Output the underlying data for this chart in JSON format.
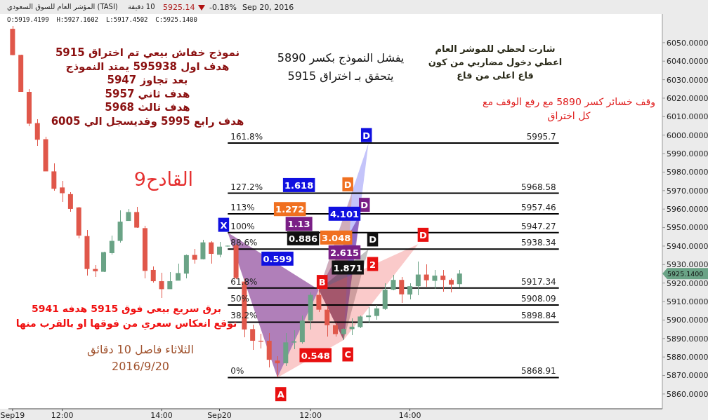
{
  "chart_data": {
    "type": "candlestick",
    "title": "المؤشر العام للسوق السعودي (TASI)",
    "subtitle": "10 دقيقة",
    "categories": [
      "Sep19",
      null,
      null,
      null,
      null,
      null,
      "12:00",
      null,
      null,
      null,
      null,
      null,
      null,
      null,
      null,
      null,
      null,
      null,
      "14:00",
      null,
      null,
      null,
      null,
      null,
      null,
      "Sep20",
      null,
      null,
      null,
      null,
      null,
      null,
      null,
      null,
      null,
      null,
      "12:00",
      null,
      null,
      null,
      null,
      null,
      null,
      null,
      null,
      null,
      null,
      null,
      "14:00",
      null,
      null,
      null,
      null,
      null,
      null,
      null,
      null,
      null,
      null,
      null,
      null,
      null,
      null,
      null,
      null,
      null,
      null,
      null,
      null,
      null,
      null,
      null,
      null,
      null,
      null,
      null,
      null,
      null,
      null
    ],
    "ohlc": [
      [
        6057.5,
        6059.1,
        6043.3,
        6043.3
      ],
      [
        6043.4,
        6043.5,
        6023.3,
        6023.4
      ],
      [
        6023.4,
        6025.0,
        6005.0,
        6006.2
      ],
      [
        6006.5,
        6008.7,
        5994.2,
        5997.5
      ],
      [
        5997.8,
        5999.0,
        5980.4,
        5980.4
      ],
      [
        5980.4,
        5984.8,
        5970.0,
        5971.0
      ],
      [
        5971.7,
        5975.4,
        5963.8,
        5968.6
      ],
      [
        5968.1,
        5969.1,
        5958.7,
        5960.1
      ],
      [
        5960.9,
        5961.3,
        5944.2,
        5945.7
      ],
      [
        5945.4,
        5948.6,
        5924.2,
        5927.6
      ],
      [
        5927.6,
        5929.7,
        5923.2,
        5926.4
      ],
      [
        5926.1,
        5937.0,
        5926.1,
        5936.7
      ],
      [
        5936.2,
        5945.7,
        5935.5,
        5942.8
      ],
      [
        5942.8,
        5959.4,
        5942.0,
        5953.2
      ],
      [
        5953.6,
        5960.1,
        5953.6,
        5958.4
      ],
      [
        5958.4,
        5961.3,
        5950.0,
        5950.0
      ],
      [
        5949.7,
        5951.0,
        5922.5,
        5926.6
      ],
      [
        5927.1,
        5929.0,
        5920.3,
        5921.0
      ],
      [
        5921.0,
        5925.4,
        5912.1,
        5916.7
      ],
      [
        5916.7,
        5926.1,
        5916.7,
        5921.0
      ],
      [
        5921.3,
        5930.4,
        5921.3,
        5925.4
      ],
      [
        5925.1,
        5935.5,
        5922.5,
        5935.1
      ],
      [
        5935.2,
        5938.4,
        5930.4,
        5932.6
      ],
      [
        5932.9,
        5943.5,
        5932.6,
        5942.0
      ],
      [
        5942.0,
        5942.8,
        5930.4,
        5935.8
      ],
      [
        5935.3,
        5942.2,
        5934.1,
        5939.7
      ],
      [
        5939.8,
        5940.5,
        5939.5,
        5940.2
      ],
      [
        5940.4,
        5941.0,
        5922.0,
        5922.7
      ],
      [
        5920.8,
        5922.7,
        5890.5,
        5894.9
      ],
      [
        5895.1,
        5897.4,
        5883.8,
        5888.8
      ],
      [
        5888.8,
        5892.4,
        5884.8,
        5888.3
      ],
      [
        5888.8,
        5893.0,
        5874.4,
        5878.5
      ],
      [
        5878.1,
        5880.4,
        5868.9,
        5876.6
      ],
      [
        5876.6,
        5893.0,
        5875.0,
        5887.9
      ],
      [
        5887.8,
        5894.3,
        5884.2,
        5888.5
      ],
      [
        5888.0,
        5902.5,
        5887.3,
        5899.7
      ],
      [
        5899.7,
        5915.1,
        5894.9,
        5913.6
      ],
      [
        5913.6,
        5916.4,
        5904.4,
        5905.6
      ],
      [
        5905.6,
        5907.5,
        5891.1,
        5897.2
      ],
      [
        5897.2,
        5898.7,
        5891.1,
        5892.4
      ],
      [
        5892.4,
        5895.5,
        5889.2,
        5895.2
      ],
      [
        5895.1,
        5900.9,
        5891.7,
        5896.4
      ],
      [
        5896.2,
        5902.5,
        5895.5,
        5901.9
      ],
      [
        5901.6,
        5906.9,
        5898.7,
        5902.5
      ],
      [
        5902.2,
        5908.2,
        5900.0,
        5906.3
      ],
      [
        5906.0,
        5919.9,
        5905.6,
        5916.4
      ],
      [
        5916.4,
        5924.6,
        5916.1,
        5921.7
      ],
      [
        5921.7,
        5923.3,
        5909.4,
        5913.9
      ],
      [
        5913.8,
        5919.9,
        5911.1,
        5918.3
      ],
      [
        5918.3,
        5931.6,
        5913.6,
        5924.6
      ],
      [
        5924.6,
        5930.0,
        5917.9,
        5921.5
      ],
      [
        5921.2,
        5926.9,
        5917.0,
        5924.0
      ],
      [
        5924.0,
        5927.1,
        5915.5,
        5921.7
      ],
      [
        5921.7,
        5922.7,
        5915.1,
        5919.2
      ],
      [
        5919.42,
        5927.16,
        5917.45,
        5925.14
      ],
      null,
      null,
      null,
      null,
      null,
      null,
      null,
      null,
      null,
      null,
      null,
      null,
      null,
      null,
      null,
      null,
      null,
      null,
      null,
      null,
      null,
      null,
      null,
      null
    ],
    "series": [
      {
        "type": "area",
        "color": "#7b2a8a",
        "values": [
          null,
          null,
          null,
          null,
          null,
          null,
          null,
          null,
          null,
          null,
          null,
          null,
          null,
          null,
          null,
          null,
          null,
          null,
          null,
          null,
          null,
          null,
          null,
          null,
          null,
          null,
          5947.27,
          null,
          null,
          null,
          null,
          null,
          5868.91,
          null,
          null,
          null,
          null,
          5916.4,
          null,
          null,
          5889.2,
          null,
          5957.46,
          null,
          null,
          null,
          null,
          null,
          null,
          null,
          null,
          null,
          null,
          null,
          null,
          null,
          null,
          null,
          null,
          null,
          null,
          null,
          null,
          null,
          null,
          null,
          null,
          null,
          null,
          null,
          null,
          null,
          null,
          null,
          null,
          null,
          null,
          null,
          null
        ]
      },
      {
        "type": "area",
        "color": "#3b3bf0",
        "values": [
          null,
          null,
          null,
          null,
          null,
          null,
          null,
          null,
          null,
          null,
          null,
          null,
          null,
          null,
          null,
          null,
          null,
          null,
          null,
          null,
          null,
          null,
          null,
          null,
          null,
          null,
          null,
          null,
          null,
          null,
          null,
          null,
          null,
          null,
          null,
          null,
          null,
          5916.4,
          null,
          null,
          5889.2,
          null,
          null,
          5995.7,
          null,
          null,
          null,
          null,
          null,
          null,
          null,
          null,
          null,
          null,
          null,
          null,
          null,
          null,
          null,
          null,
          null,
          null,
          null,
          null,
          null,
          null,
          null,
          null,
          null,
          null,
          null,
          null,
          null,
          null,
          null,
          null,
          null,
          null,
          null
        ]
      },
      {
        "type": "area",
        "color": "#f07828",
        "values": [
          null,
          null,
          null,
          null,
          null,
          null,
          null,
          null,
          null,
          null,
          null,
          null,
          null,
          null,
          null,
          null,
          null,
          null,
          null,
          null,
          null,
          null,
          null,
          null,
          null,
          null,
          null,
          null,
          null,
          null,
          null,
          null,
          null,
          null,
          null,
          null,
          null,
          5916.4,
          null,
          null,
          5889.2,
          5968.58,
          null,
          null,
          null,
          null,
          null,
          null,
          null,
          null,
          null,
          null,
          null,
          null,
          null,
          null,
          null,
          null,
          null,
          null,
          null,
          null,
          null,
          null,
          null,
          null,
          null,
          null,
          null,
          null,
          null,
          null,
          null,
          null,
          null,
          null,
          null,
          null,
          null
        ]
      },
      {
        "type": "area",
        "color": "#333333",
        "values": [
          null,
          null,
          null,
          null,
          null,
          null,
          null,
          null,
          null,
          null,
          null,
          null,
          null,
          null,
          null,
          null,
          null,
          null,
          null,
          null,
          null,
          null,
          null,
          null,
          null,
          null,
          null,
          null,
          null,
          null,
          null,
          null,
          null,
          null,
          null,
          null,
          null,
          5916.4,
          null,
          null,
          5889.2,
          null,
          null,
          5938.34,
          null,
          null,
          null,
          null,
          null,
          null,
          null,
          null,
          null,
          null,
          null,
          null,
          null,
          null,
          null,
          null,
          null,
          null,
          null,
          null,
          null,
          null,
          null,
          null,
          null,
          null,
          null,
          null,
          null,
          null,
          null,
          null,
          null,
          null,
          null
        ]
      },
      {
        "type": "area",
        "color": "#f05050",
        "values": [
          null,
          null,
          null,
          null,
          null,
          null,
          null,
          null,
          null,
          null,
          null,
          null,
          null,
          null,
          null,
          null,
          null,
          null,
          null,
          null,
          null,
          null,
          null,
          null,
          null,
          null,
          null,
          null,
          null,
          null,
          null,
          null,
          5868.91,
          null,
          null,
          null,
          null,
          5916.4,
          null,
          null,
          5889.2,
          null,
          null,
          null,
          null,
          null,
          null,
          null,
          null,
          5941,
          null,
          null,
          null,
          null,
          null,
          null,
          null,
          null,
          null,
          null,
          null,
          null,
          null,
          null,
          null,
          null,
          null,
          null,
          null,
          null,
          null,
          null,
          null,
          null,
          null,
          null,
          null,
          null,
          null
        ]
      }
    ],
    "ylim": [
      5852,
      6065.5
    ],
    "yticks": [
      {
        "value": 5860,
        "label": "5860.0000"
      },
      {
        "value": 5870,
        "label": "5870.0000"
      },
      {
        "value": 5880,
        "label": "5880.0000"
      },
      {
        "value": 5890,
        "label": "5890.0000"
      },
      {
        "value": 5900,
        "label": "5900.0000"
      },
      {
        "value": 5910,
        "label": "5910.0000"
      },
      {
        "value": 5920,
        "label": "5920.0000"
      },
      {
        "value": 5930,
        "label": "5930.0000"
      },
      {
        "value": 5940,
        "label": "5940.0000"
      },
      {
        "value": 5950,
        "label": "5950.0000"
      },
      {
        "value": 5960,
        "label": "5960.0000"
      },
      {
        "value": 5970,
        "label": "5970.0000"
      },
      {
        "value": 5980,
        "label": "5980.0000"
      },
      {
        "value": 5990,
        "label": "5990.0000"
      },
      {
        "value": 6000,
        "label": "6000.0000"
      },
      {
        "value": 6010,
        "label": "6010.0000"
      },
      {
        "value": 6020,
        "label": "6020.0000"
      },
      {
        "value": 6030,
        "label": "6030.0000"
      },
      {
        "value": 6040,
        "label": "6040.0000"
      },
      {
        "value": 6050,
        "label": "6050.0000"
      }
    ],
    "ref_lines": [
      {
        "axis": "y",
        "value": 5995.7,
        "label": "5995.7",
        "color": "#000000"
      },
      {
        "axis": "y",
        "value": 5968.58,
        "label": "5968.58",
        "color": "#000000"
      },
      {
        "axis": "y",
        "value": 5957.46,
        "label": "5957.46",
        "color": "#000000"
      },
      {
        "axis": "y",
        "value": 5947.27,
        "label": "5947.27",
        "color": "#000000"
      },
      {
        "axis": "y",
        "value": 5938.34,
        "label": "5938.34",
        "color": "#000000"
      },
      {
        "axis": "y",
        "value": 5917.34,
        "label": "5917.34",
        "color": "#000000"
      },
      {
        "axis": "y",
        "value": 5908.09,
        "label": "5908.09",
        "color": "#000000"
      },
      {
        "axis": "y",
        "value": 5898.84,
        "label": "5898.84",
        "color": "#000000"
      },
      {
        "axis": "y",
        "value": 5868.91,
        "label": "5868.91",
        "color": "#000000"
      }
    ],
    "annotations": [
      "5925.14",
      "-0.18%",
      "Sep 20, 2016",
      "O:5919.4199  H:5927.1602  L:5917.4502  C:5925.1400",
      "نموذج خفاش بيعي تم اختراق 5915\nهدف اول 595938 يمتد النموذج\nبعد تجاوز 5947\nهدف ثاني 5957\nهدف ثالث 5968\nهدف رابع 5995 وقديسجل الي 6005",
      "القادح9",
      "برق سريع بيعي فوق 5915 هدفه 5941\nتوقع انعكاس سعري من فوقها او بالقرب منها",
      "الثلاثاء فاصل 10 دقائق\n2016/9/20",
      "يفشل النموذج بكسر 5890\nيتحقق بـ اختراق 5915",
      "شارت لحظي للموشر العام\nاعطي دخول مضاربي من كون\nقاع اعلى من قاع",
      "وقف خسائر كسر 5890 مع رفع الوقف مع\nكل اختراق",
      "161.8%",
      "127.2%",
      "113%",
      "100%",
      "88.6%",
      "61.8%",
      "50%",
      "38.2%",
      "0%",
      "X",
      "A",
      "B",
      "C",
      "D",
      "D",
      "D",
      "D",
      "D",
      "0.599",
      "0.886",
      "1.618",
      "1.272",
      "1.13",
      "4.101",
      "3.048",
      "2.615",
      "1.871",
      "0.548",
      "2",
      "5925.1400"
    ]
  }
}
